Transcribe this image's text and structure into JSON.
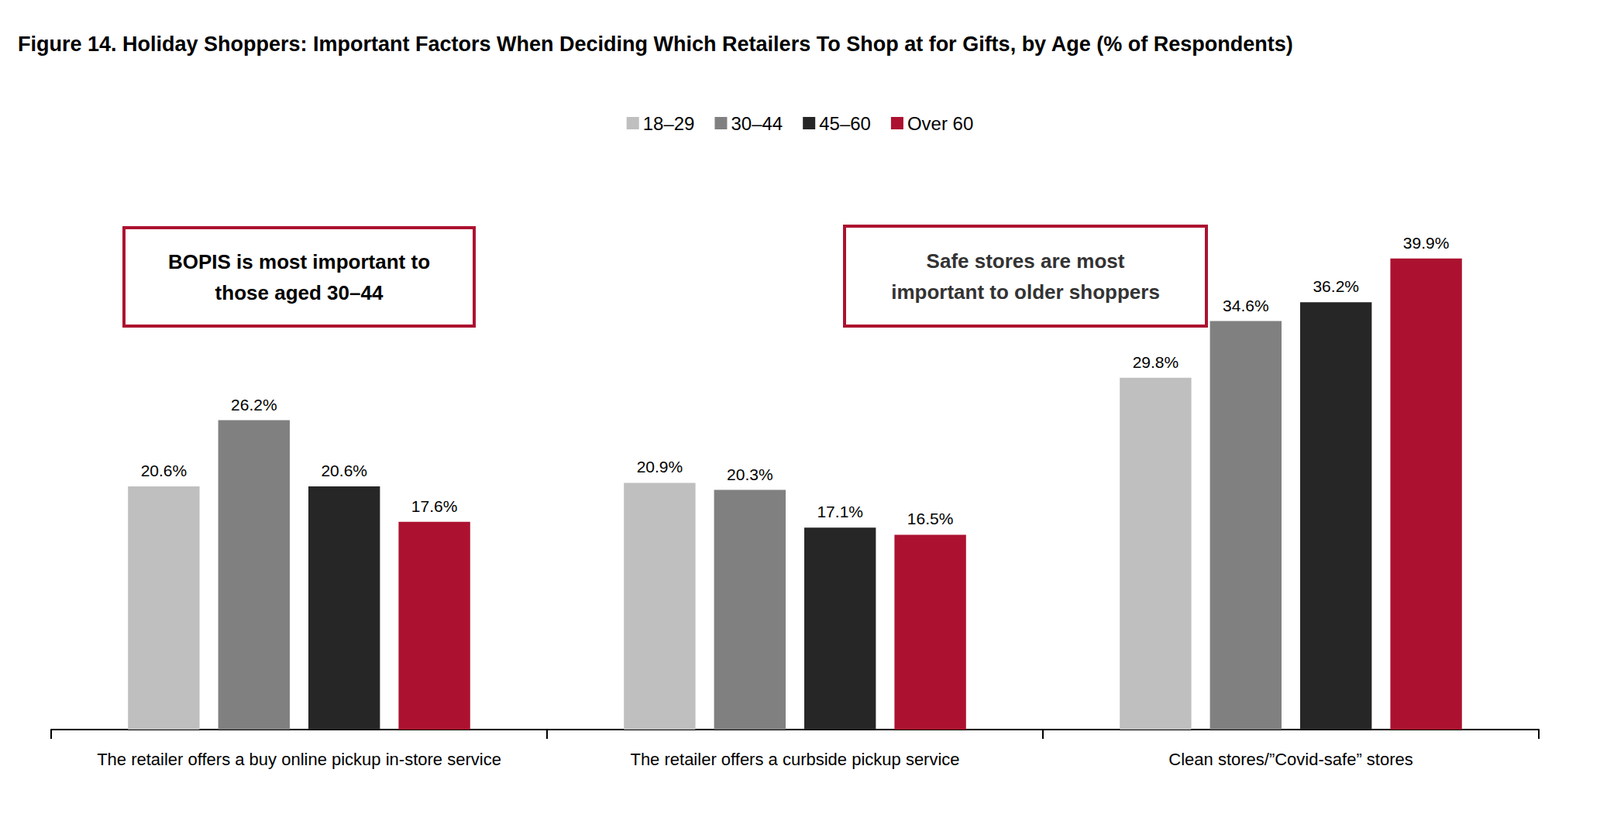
{
  "chart_data": {
    "type": "bar",
    "title": "Figure 14. Holiday Shoppers: Important Factors When Deciding Which Retailers To Shop at for Gifts, by Age (% of Respondents)",
    "categories": [
      "The retailer offers a buy online pickup in-store service",
      "The retailer offers a curbside pickup service",
      "Clean stores/”Covid-safe” stores"
    ],
    "series": [
      {
        "name": "18–29",
        "color": "#BFBFBF",
        "values": [
          20.6,
          20.9,
          29.8
        ],
        "value_labels": [
          "20.6%",
          "20.9%",
          "29.8%"
        ]
      },
      {
        "name": "30–44",
        "color": "#808080",
        "values": [
          26.2,
          20.3,
          34.6
        ],
        "value_labels": [
          "26.2%",
          "20.3%",
          "34.6%"
        ]
      },
      {
        "name": "45–60",
        "color": "#262626",
        "values": [
          20.6,
          17.1,
          36.2
        ],
        "value_labels": [
          "20.6%",
          "17.1%",
          "36.2%"
        ]
      },
      {
        "name": "Over 60",
        "color": "#AC1230",
        "values": [
          17.6,
          16.5,
          39.9
        ],
        "value_labels": [
          "17.6%",
          "16.5%",
          "39.9%"
        ]
      }
    ],
    "annotations": [
      {
        "text": "BOPIS is most important to\nthose aged 30–44"
      },
      {
        "text": "Safe stores are most\nimportant to older shoppers"
      }
    ],
    "ylim": [
      0,
      45
    ],
    "grid": false,
    "legend": "top",
    "data_labels": true,
    "tick_labels": "x"
  }
}
